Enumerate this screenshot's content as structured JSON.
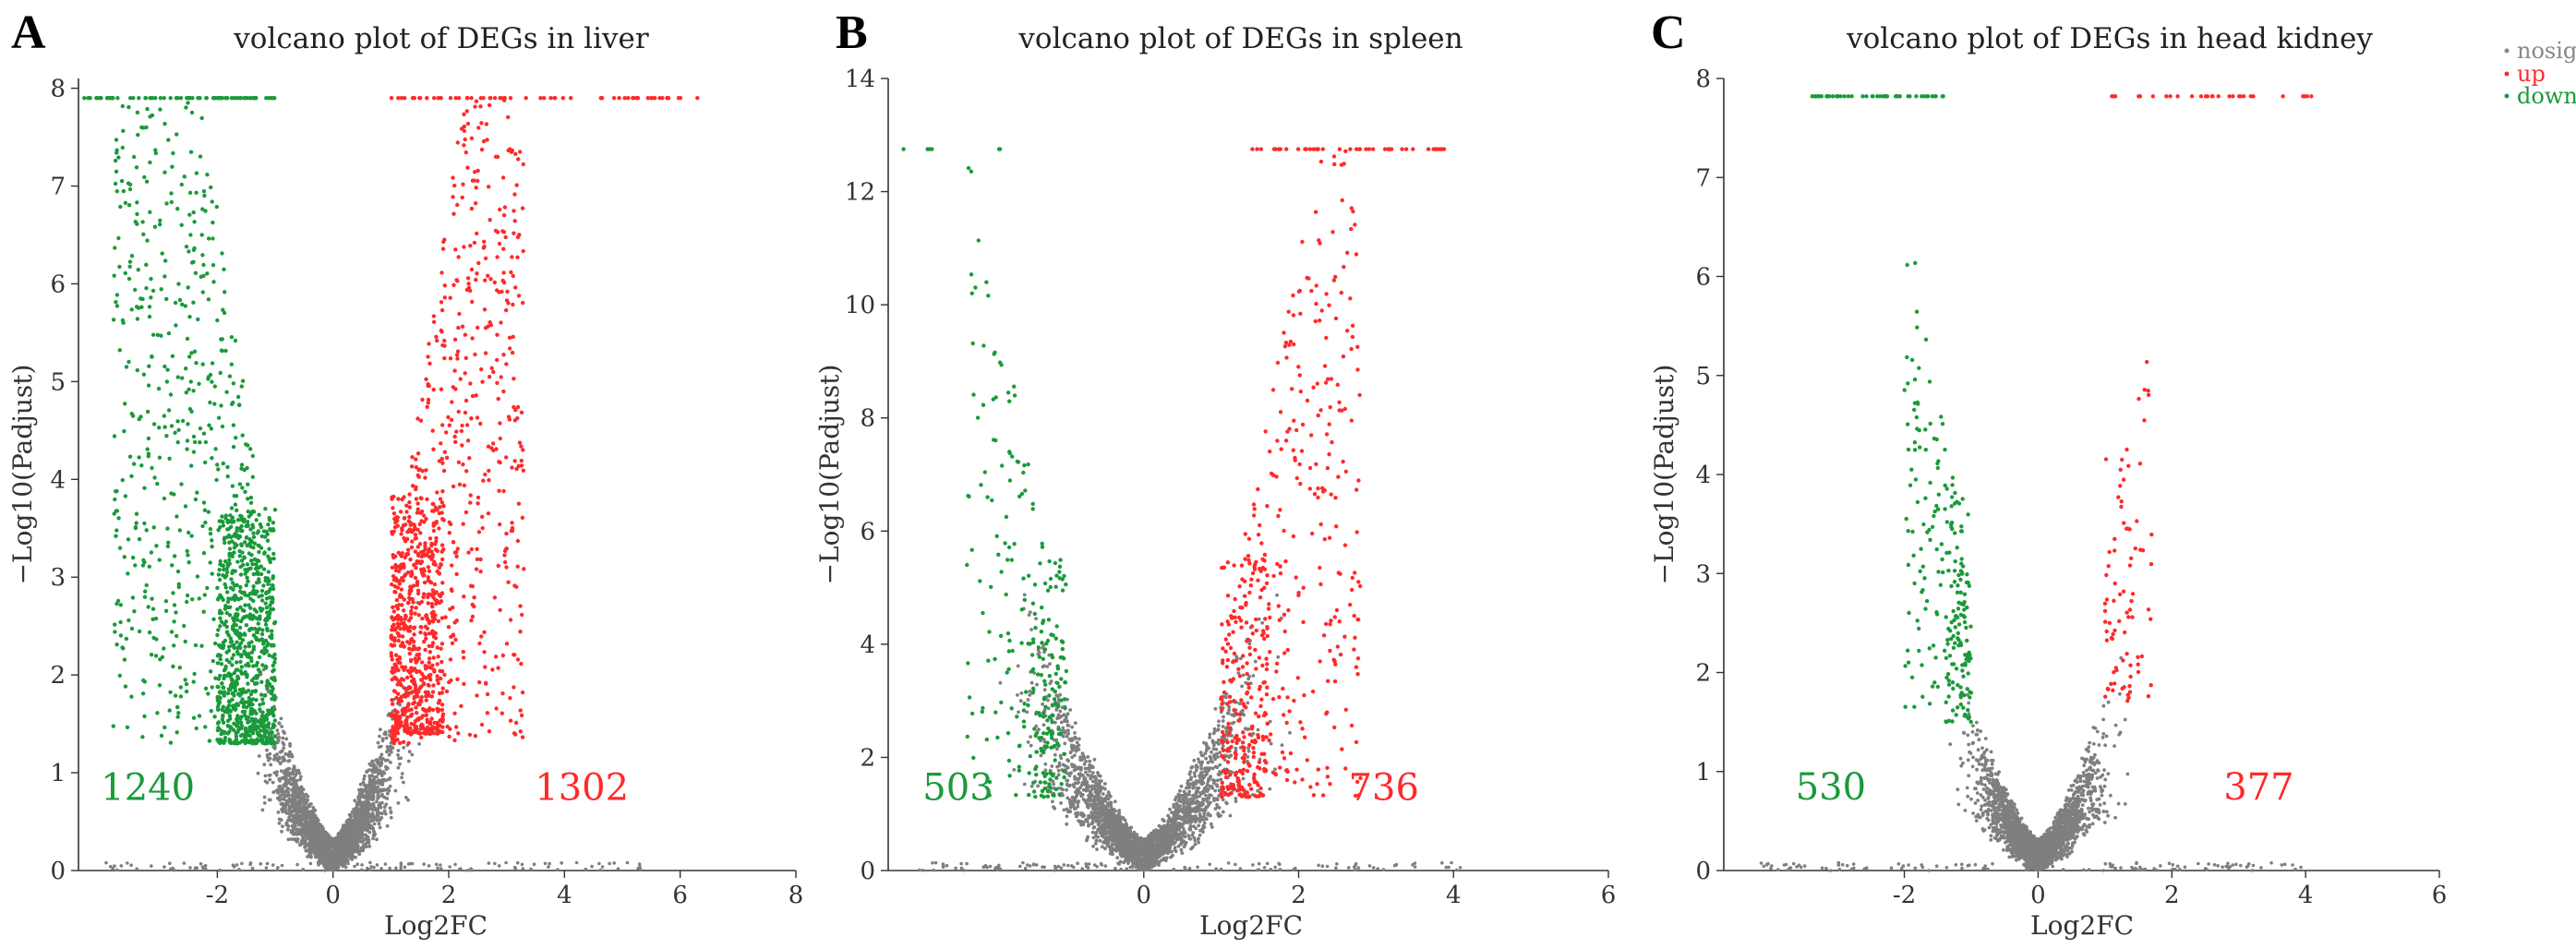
{
  "colors": {
    "nosig": "#7f7f7f",
    "up": "#ff2a2a",
    "down": "#1a9a3a",
    "axis": "#333333"
  },
  "legend": [
    {
      "key": "nosig",
      "label": "nosig",
      "color": "#888888"
    },
    {
      "key": "up",
      "label": "up",
      "color": "#ff2a2a"
    },
    {
      "key": "down",
      "label": "down",
      "color": "#1a9a3a"
    }
  ],
  "chart_data": [
    {
      "type": "scatter",
      "panel": "A",
      "title": "volcano plot of DEGs in liver",
      "xlabel": "Log2FC",
      "ylabel": "−Log10(Padjust)",
      "xlim": [
        -4.4,
        8
      ],
      "ylim": [
        0,
        8.1
      ],
      "xticks": [
        -2,
        0,
        2,
        4,
        6,
        8
      ],
      "yticks": [
        0,
        1,
        2,
        3,
        4,
        5,
        6,
        7,
        8
      ],
      "cap": 7.9,
      "down_count": "1240",
      "up_count": "1302",
      "down_count_x": -3.2,
      "up_count_x": 4.3,
      "count_y": 0.72,
      "nosig_spread": 2.4,
      "nosig_n": 2600,
      "down": {
        "n": 620,
        "fc_range": [
          -3.8,
          -1.0
        ],
        "y_min": 1.3,
        "dense_y_min": 1.3,
        "dense_fc": [
          -2.0,
          -1.0
        ],
        "dense_n": 700,
        "cap_n": 75,
        "cap_fc": [
          -4.3,
          -1.0
        ]
      },
      "up": {
        "n": 620,
        "fc_range": [
          1.0,
          3.3
        ],
        "y_min": 1.3,
        "dense_y_min": 1.4,
        "dense_fc": [
          1.0,
          1.9
        ],
        "dense_n": 500,
        "cap_n": 60,
        "cap_fc": [
          1.0,
          6.3
        ]
      }
    },
    {
      "type": "scatter",
      "panel": "B",
      "title": "volcano plot of DEGs in spleen",
      "xlabel": "Log2FC",
      "ylabel": "−Log10(Padjust)",
      "xlim": [
        -3.3,
        6
      ],
      "ylim": [
        0,
        14
      ],
      "xticks": [
        0,
        2,
        4,
        6
      ],
      "yticks": [
        0,
        2,
        4,
        6,
        8,
        10,
        12,
        14
      ],
      "cap": 12.75,
      "down_count": "503",
      "up_count": "736",
      "down_count_x": -2.4,
      "up_count_x": 3.1,
      "count_y": 1.25,
      "nosig_spread": 3.1,
      "nosig_n": 2300,
      "down": {
        "n": 140,
        "fc_range": [
          -2.3,
          -1.0
        ],
        "y_min": 1.3,
        "dense_y_min": 1.3,
        "dense_fc": [
          -1.5,
          -1.0
        ],
        "dense_n": 120,
        "cap_n": 6,
        "cap_fc": [
          -3.3,
          -1.2
        ]
      },
      "up": {
        "n": 340,
        "fc_range": [
          1.0,
          2.8
        ],
        "y_min": 1.3,
        "dense_y_min": 1.3,
        "dense_fc": [
          1.0,
          1.6
        ],
        "dense_n": 180,
        "cap_n": 40,
        "cap_fc": [
          1.4,
          3.9
        ]
      }
    },
    {
      "type": "scatter",
      "panel": "C",
      "title": "volcano plot of DEGs in head kidney",
      "xlabel": "Log2FC",
      "ylabel": "−Log10(Padjust)",
      "xlim": [
        -4.7,
        6
      ],
      "ylim": [
        0,
        8
      ],
      "xticks": [
        -2,
        0,
        2,
        4,
        6
      ],
      "yticks": [
        0,
        1,
        2,
        3,
        4,
        5,
        6,
        7,
        8
      ],
      "cap": 7.82,
      "down_count": "530",
      "up_count": "377",
      "down_count_x": -3.1,
      "up_count_x": 3.3,
      "count_y": 0.72,
      "nosig_spread": 2.2,
      "nosig_n": 2200,
      "down": {
        "n": 150,
        "fc_range": [
          -2.0,
          -1.0
        ],
        "y_min": 1.5,
        "dense_y_min": 1.5,
        "dense_fc": [
          -1.4,
          -1.0
        ],
        "dense_n": 80,
        "cap_n": 50,
        "cap_fc": [
          -3.4,
          -1.4
        ]
      },
      "up": {
        "n": 60,
        "fc_range": [
          1.0,
          1.7
        ],
        "y_min": 1.7,
        "dense_y_min": 1.8,
        "dense_fc": [
          1.0,
          1.4
        ],
        "dense_n": 25,
        "cap_n": 30,
        "cap_fc": [
          1.1,
          4.1
        ]
      }
    }
  ]
}
